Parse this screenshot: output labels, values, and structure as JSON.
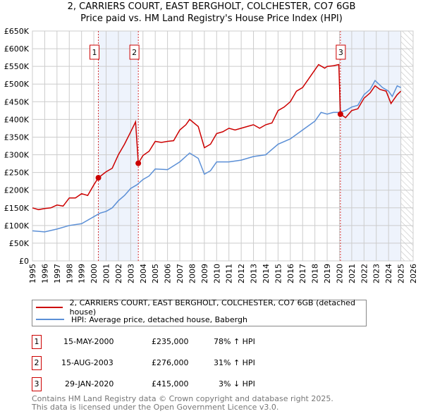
{
  "title": "2, CARRIERS COURT, EAST BERGHOLT, COLCHESTER, CO7 6GB",
  "subtitle": "Price paid vs. HM Land Registry's House Price Index (HPI)",
  "chart_data": {
    "type": "line",
    "title": "2, CARRIERS COURT, EAST BERGHOLT, COLCHESTER, CO7 6GB",
    "subtitle": "Price paid vs. HM Land Registry's House Price Index (HPI)",
    "xlim": [
      1995,
      2026
    ],
    "ylim": [
      0,
      650000
    ],
    "x_ticks": [
      "1995",
      "1996",
      "1997",
      "1998",
      "1999",
      "2000",
      "2001",
      "2002",
      "2003",
      "2004",
      "2005",
      "2006",
      "2007",
      "2008",
      "2009",
      "2010",
      "2011",
      "2012",
      "2013",
      "2014",
      "2015",
      "2016",
      "2017",
      "2018",
      "2019",
      "2020",
      "2021",
      "2022",
      "2023",
      "2024",
      "2025",
      "2026"
    ],
    "y_ticks": [
      "£0",
      "£50K",
      "£100K",
      "£150K",
      "£200K",
      "£250K",
      "£300K",
      "£350K",
      "£400K",
      "£450K",
      "£500K",
      "£550K",
      "£600K",
      "£650K"
    ],
    "grid": true,
    "colors": {
      "property": "#cc0000",
      "hpi": "#5b8fd6",
      "shade": "#eef3fc"
    },
    "series": [
      {
        "name": "2, CARRIERS COURT, EAST BERGHOLT, COLCHESTER, CO7 6GB (detached house)",
        "color": "#cc0000",
        "x": [
          1995,
          1995.5,
          1996,
          1996.5,
          1997,
          1997.5,
          1998,
          1998.5,
          1999,
          1999.5,
          2000,
          2000.37,
          2001,
          2001.5,
          2002,
          2002.5,
          2003,
          2003.4,
          2003.62,
          2004,
          2004.5,
          2005,
          2005.5,
          2006,
          2006.5,
          2007,
          2007.5,
          2007.8,
          2008.5,
          2009,
          2009.5,
          2010,
          2010.5,
          2011,
          2011.5,
          2012,
          2012.5,
          2013,
          2013.5,
          2014,
          2014.5,
          2015,
          2015.5,
          2016,
          2016.5,
          2017,
          2017.5,
          2018,
          2018.3,
          2018.8,
          2019,
          2019.5,
          2019.95,
          2020.08,
          2020.5,
          2021,
          2021.5,
          2022,
          2022.5,
          2022.9,
          2023.3,
          2023.8,
          2024.2,
          2024.7,
          2025
        ],
        "y": [
          150000,
          145000,
          148000,
          150000,
          158000,
          155000,
          178000,
          178000,
          190000,
          185000,
          215000,
          235000,
          252000,
          262000,
          300000,
          330000,
          365000,
          393000,
          276000,
          298000,
          310000,
          338000,
          335000,
          338000,
          340000,
          370000,
          385000,
          400000,
          380000,
          320000,
          330000,
          360000,
          365000,
          375000,
          370000,
          375000,
          380000,
          385000,
          375000,
          385000,
          390000,
          425000,
          435000,
          450000,
          480000,
          490000,
          515000,
          540000,
          555000,
          545000,
          550000,
          552000,
          555000,
          415000,
          405000,
          425000,
          430000,
          460000,
          475000,
          495000,
          485000,
          480000,
          445000,
          470000,
          480000
        ]
      },
      {
        "name": "HPI: Average price, detached house, Babergh",
        "color": "#5b8fd6",
        "x": [
          1995,
          1996,
          1997,
          1998,
          1999,
          2000,
          2000.5,
          2001,
          2001.5,
          2002,
          2002.5,
          2003,
          2003.5,
          2004,
          2004.5,
          2005,
          2006,
          2007,
          2007.8,
          2008.5,
          2009,
          2009.5,
          2010,
          2011,
          2012,
          2013,
          2014,
          2015,
          2016,
          2017,
          2018,
          2018.5,
          2019,
          2019.5,
          2020,
          2020.5,
          2021,
          2021.5,
          2022,
          2022.5,
          2022.9,
          2023.5,
          2024,
          2024.3,
          2024.7,
          2025
        ],
        "y": [
          85000,
          82000,
          90000,
          100000,
          105000,
          125000,
          135000,
          140000,
          150000,
          170000,
          185000,
          205000,
          215000,
          230000,
          240000,
          260000,
          258000,
          280000,
          305000,
          290000,
          245000,
          255000,
          280000,
          280000,
          285000,
          295000,
          300000,
          330000,
          345000,
          370000,
          395000,
          420000,
          415000,
          420000,
          420000,
          425000,
          435000,
          440000,
          470000,
          485000,
          510000,
          490000,
          480000,
          465000,
          495000,
          490000
        ]
      }
    ],
    "annotations": [
      {
        "label": "1",
        "x": 2000.37,
        "y": 235000
      },
      {
        "label": "2",
        "x": 2003.62,
        "y": 276000
      },
      {
        "label": "3",
        "x": 2020.08,
        "y": 415000
      }
    ],
    "shaded_ranges": [
      [
        2000.37,
        2003.62
      ],
      [
        2020.08,
        2025
      ]
    ],
    "hatched_range": [
      2025,
      2026
    ],
    "legend_position": "bottom"
  },
  "legend": {
    "property": "2, CARRIERS COURT, EAST BERGHOLT, COLCHESTER, CO7 6GB (detached house)",
    "hpi": "HPI: Average price, detached house, Babergh"
  },
  "transactions": [
    {
      "num": "1",
      "date": "15-MAY-2000",
      "price": "£235,000",
      "hpi": "78% ↑ HPI"
    },
    {
      "num": "2",
      "date": "15-AUG-2003",
      "price": "£276,000",
      "hpi": "31% ↑ HPI"
    },
    {
      "num": "3",
      "date": "29-JAN-2020",
      "price": "£415,000",
      "hpi": "3% ↓ HPI"
    }
  ],
  "footer": {
    "line1": "Contains HM Land Registry data © Crown copyright and database right 2025.",
    "line2": "This data is licensed under the Open Government Licence v3.0."
  }
}
